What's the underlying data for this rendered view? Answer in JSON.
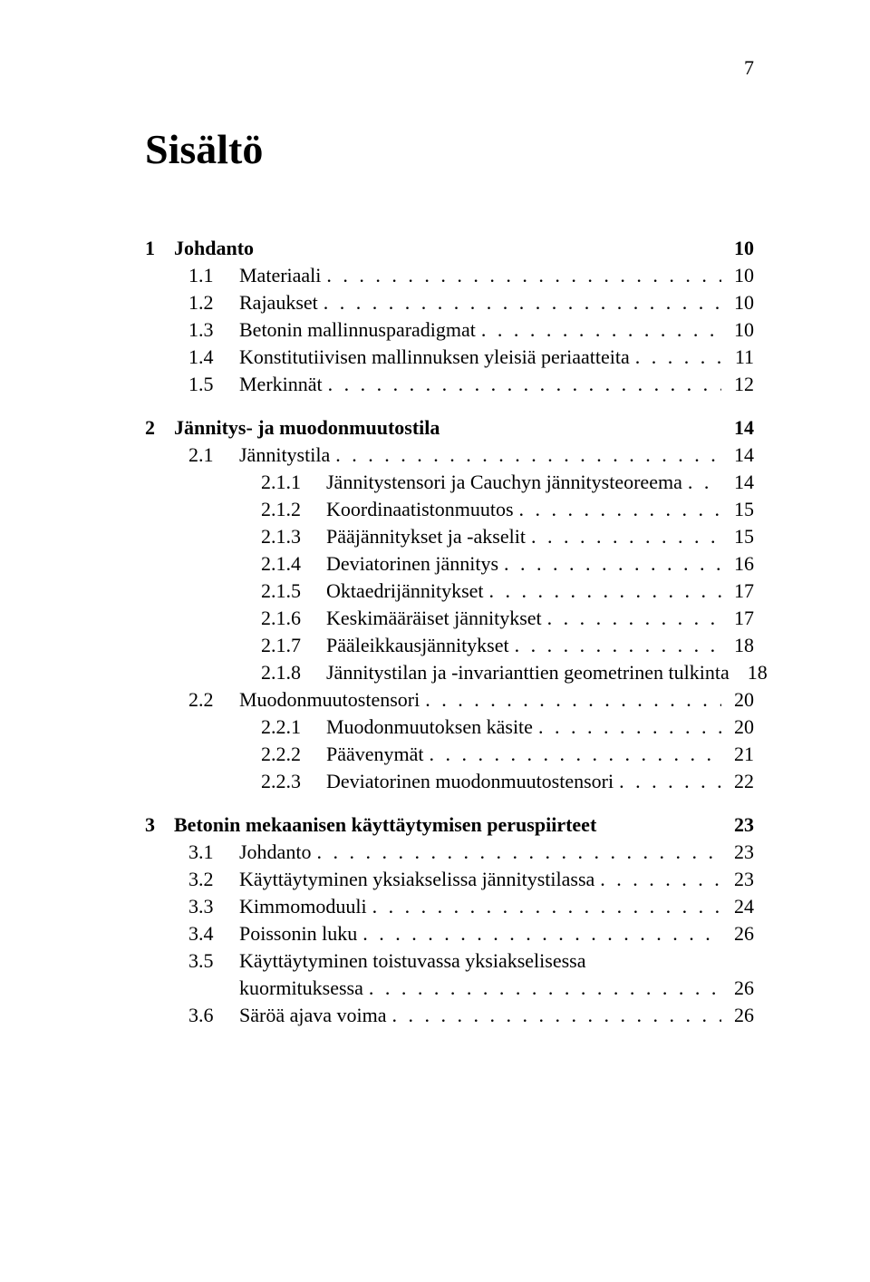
{
  "page_number": "7",
  "title": "Sisältö",
  "chapters": [
    {
      "num": "1",
      "title": "Johdanto",
      "page": "10",
      "entries": [
        {
          "level": 1,
          "num": "1.1",
          "title": "Materiaali",
          "page": "10"
        },
        {
          "level": 1,
          "num": "1.2",
          "title": "Rajaukset",
          "page": "10"
        },
        {
          "level": 1,
          "num": "1.3",
          "title": "Betonin mallinnusparadigmat",
          "page": "10"
        },
        {
          "level": 1,
          "num": "1.4",
          "title": "Konstitutiivisen mallinnuksen yleisiä periaatteita",
          "page": "11"
        },
        {
          "level": 1,
          "num": "1.5",
          "title": "Merkinnät",
          "page": "12"
        }
      ]
    },
    {
      "num": "2",
      "title": "Jännitys- ja muodonmuutostila",
      "page": "14",
      "entries": [
        {
          "level": 1,
          "num": "2.1",
          "title": "Jännitystila",
          "page": "14"
        },
        {
          "level": 2,
          "num": "2.1.1",
          "title": "Jännitystensori ja Cauchyn jännitysteoreema",
          "page": "14"
        },
        {
          "level": 2,
          "num": "2.1.2",
          "title": "Koordinaatistonmuutos",
          "page": "15"
        },
        {
          "level": 2,
          "num": "2.1.3",
          "title": "Pääjännitykset ja -akselit",
          "page": "15"
        },
        {
          "level": 2,
          "num": "2.1.4",
          "title": "Deviatorinen jännitys",
          "page": "16"
        },
        {
          "level": 2,
          "num": "2.1.5",
          "title": "Oktaedrijännitykset",
          "page": "17"
        },
        {
          "level": 2,
          "num": "2.1.6",
          "title": "Keskimääräiset jännitykset",
          "page": "17"
        },
        {
          "level": 2,
          "num": "2.1.7",
          "title": "Pääleikkausjännitykset",
          "page": "18"
        },
        {
          "level": 2,
          "num": "2.1.8",
          "title": "Jännitystilan ja -invarianttien geometrinen tulkinta",
          "page": "18"
        },
        {
          "level": 1,
          "num": "2.2",
          "title": "Muodonmuutostensori",
          "page": "20"
        },
        {
          "level": 2,
          "num": "2.2.1",
          "title": "Muodonmuutoksen käsite",
          "page": "20"
        },
        {
          "level": 2,
          "num": "2.2.2",
          "title": "Päävenymät",
          "page": "21"
        },
        {
          "level": 2,
          "num": "2.2.3",
          "title": "Deviatorinen muodonmuutostensori",
          "page": "22"
        }
      ]
    },
    {
      "num": "3",
      "title": "Betonin mekaanisen käyttäytymisen peruspiirteet",
      "page": "23",
      "entries": [
        {
          "level": 1,
          "num": "3.1",
          "title": "Johdanto",
          "page": "23"
        },
        {
          "level": 1,
          "num": "3.2",
          "title": "Käyttäytyminen yksiakselissa jännitystilassa",
          "page": "23"
        },
        {
          "level": 1,
          "num": "3.3",
          "title": "Kimmomoduuli",
          "page": "24"
        },
        {
          "level": 1,
          "num": "3.4",
          "title": "Poissonin luku",
          "page": "26"
        },
        {
          "level": 1,
          "num": "3.5",
          "title": "Käyttäytyminen toistuvassa yksiakselisessa",
          "continuation": "kuormituksessa",
          "page": "26"
        },
        {
          "level": 1,
          "num": "3.6",
          "title": "Säröä ajava voima",
          "page": "26"
        }
      ]
    }
  ]
}
